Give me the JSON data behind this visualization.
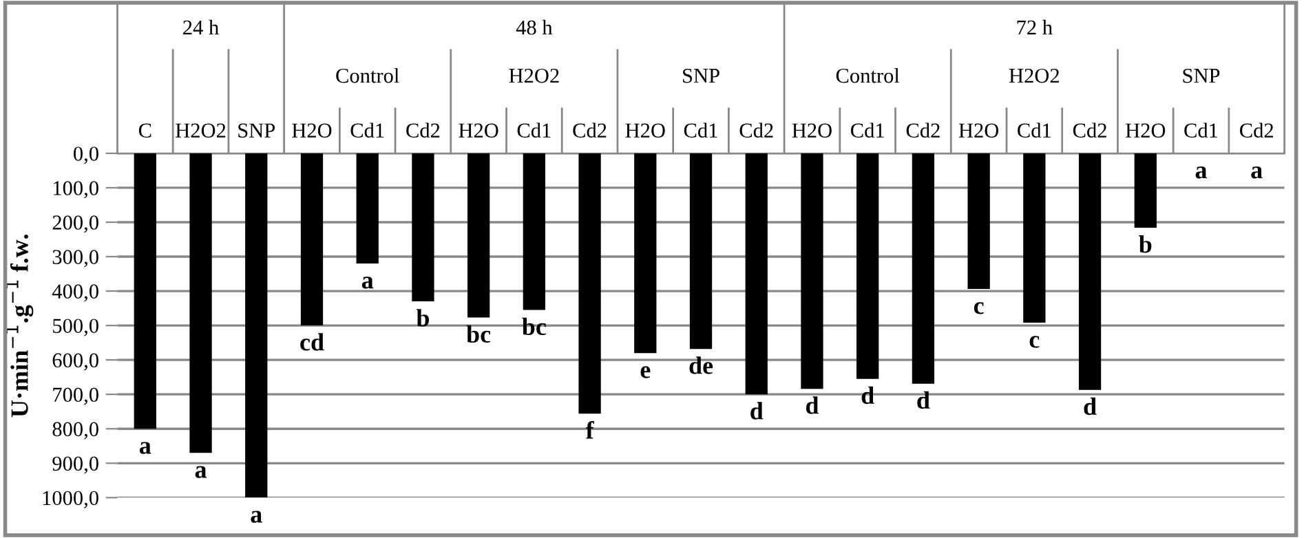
{
  "chart_data": {
    "type": "bar",
    "ylabel": "U·min$^{−1}$.g$^{−1}$ f.w.",
    "categories": [
      "C",
      "H2O2",
      "SNP",
      "H2O",
      "Cd1",
      "Cd2",
      "H2O",
      "Cd1",
      "Cd2",
      "H2O",
      "Cd1",
      "Cd2",
      "H2O",
      "Cd1",
      "Cd2",
      "H2O",
      "Cd1",
      "Cd2",
      "H2O",
      "Cd1",
      "Cd2"
    ],
    "values": [
      800,
      870,
      1000,
      500,
      320,
      430,
      477,
      455,
      756,
      580,
      568,
      700,
      684,
      655,
      669,
      394,
      492,
      687,
      216,
      0,
      0
    ],
    "color": "#000000",
    "value_labels": [
      "a",
      "a",
      "a",
      "cd",
      "a",
      "b",
      "bc",
      "bc",
      "f",
      "e",
      "de",
      "d",
      "d",
      "d",
      "d",
      "c",
      "c",
      "d",
      "b",
      "a",
      "a"
    ],
    "annotations": [
      "24 h",
      "48 h",
      "72 h",
      "Control",
      "H2O2",
      "SNP",
      "Control",
      "H2O2",
      "SNP"
    ],
    "ylim": [
      1000,
      0
    ],
    "yticks": [
      {
        "value": 0,
        "label": "0,0"
      },
      {
        "value": 100,
        "label": "100,0"
      },
      {
        "value": 200,
        "label": "200,0"
      },
      {
        "value": 300,
        "label": "300,0"
      },
      {
        "value": 400,
        "label": "400,0"
      },
      {
        "value": 500,
        "label": "500,0"
      },
      {
        "value": 600,
        "label": "600,0"
      },
      {
        "value": 700,
        "label": "700,0"
      },
      {
        "value": 800,
        "label": "800,0"
      },
      {
        "value": 900,
        "label": "900,0"
      },
      {
        "value": 1000,
        "label": "1000,0"
      }
    ],
    "grid": "y"
  }
}
